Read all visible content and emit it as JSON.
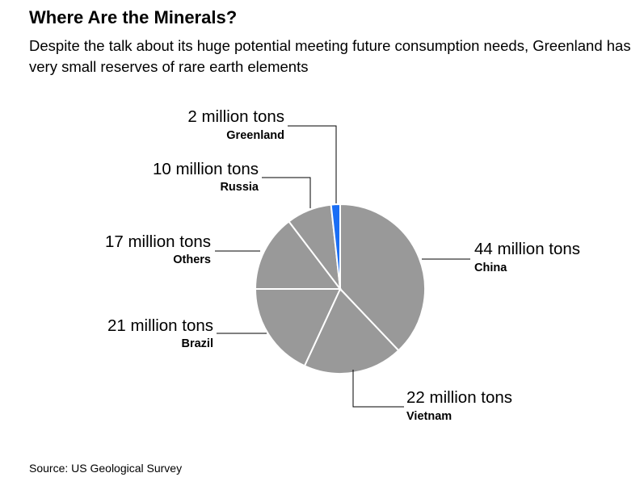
{
  "title": "Where Are the Minerals?",
  "subtitle": "Despite the talk about its huge potential meeting future consumption needs, Greenland has very small reserves of rare earth elements",
  "source": "Source: US Geological Survey",
  "chart_data": {
    "type": "pie",
    "unit": "million tons",
    "slices": [
      {
        "label": "China",
        "value": 44,
        "value_label": "44 million tons",
        "color": "#999999"
      },
      {
        "label": "Vietnam",
        "value": 22,
        "value_label": "22 million tons",
        "color": "#999999"
      },
      {
        "label": "Brazil",
        "value": 21,
        "value_label": "21 million tons",
        "color": "#999999"
      },
      {
        "label": "Others",
        "value": 17,
        "value_label": "17 million tons",
        "color": "#999999"
      },
      {
        "label": "Russia",
        "value": 10,
        "value_label": "10 million tons",
        "color": "#999999"
      },
      {
        "label": "Greenland",
        "value": 2,
        "value_label": "2 million tons",
        "color": "#1a6ef5"
      }
    ]
  }
}
